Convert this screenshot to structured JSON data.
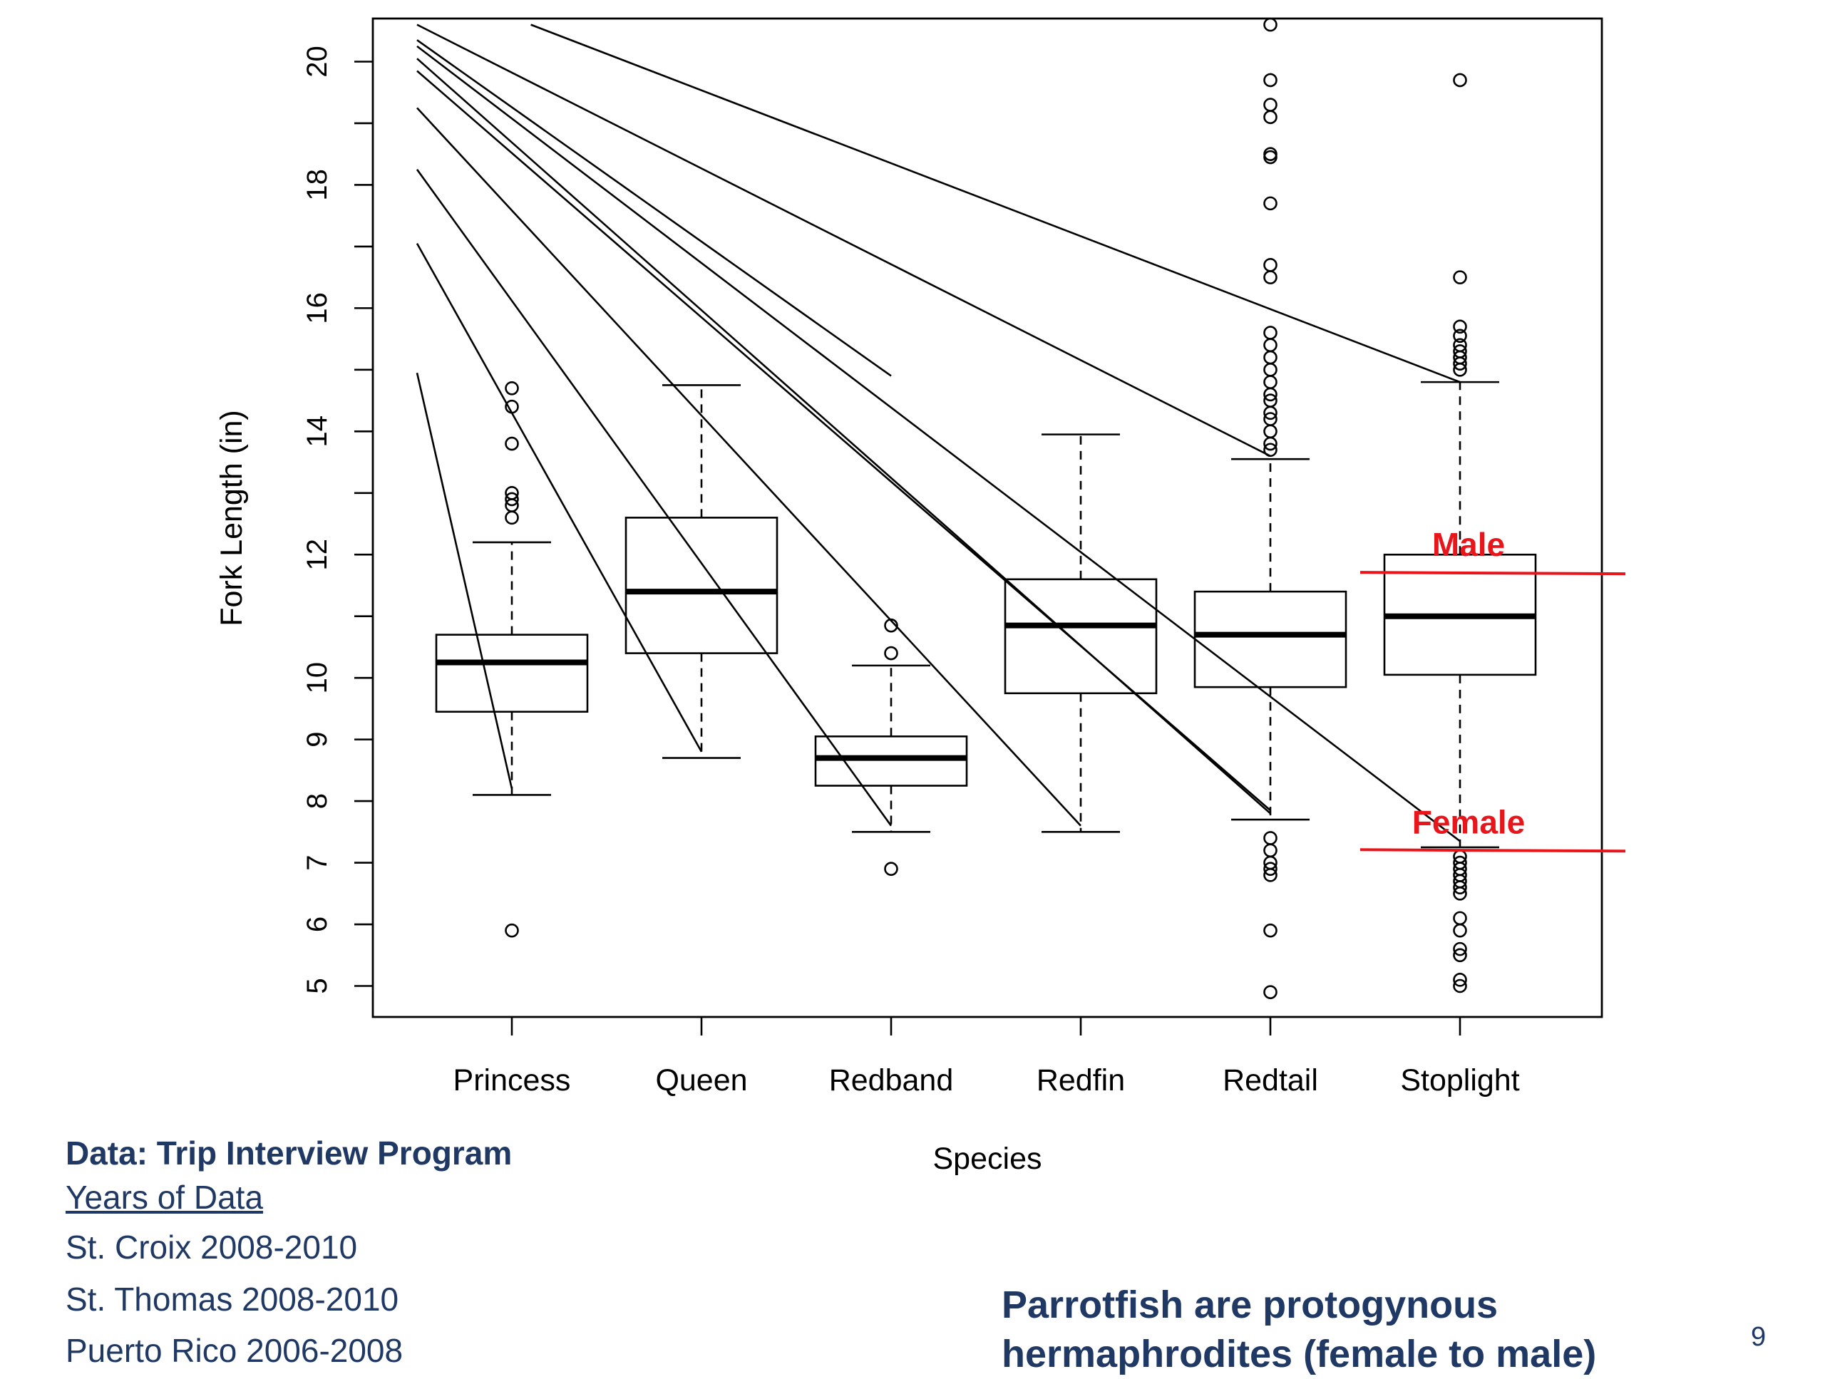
{
  "chart_data": {
    "type": "boxplot",
    "xlabel": "Species",
    "ylabel": "Fork Length (in)",
    "ylim": [
      4.4,
      20.6
    ],
    "yticks": [
      5,
      6,
      7,
      8,
      9,
      10,
      12,
      14,
      16,
      18,
      20
    ],
    "yminor": [
      11,
      13,
      15,
      17,
      19
    ],
    "categories": [
      "Princess",
      "Queen",
      "Redband",
      "Redfin",
      "Redtail",
      "Stoplight"
    ],
    "boxes": [
      {
        "name": "Princess",
        "whisker_low": 8.1,
        "q1": 9.45,
        "median": 10.25,
        "q3": 10.7,
        "whisker_high": 12.2,
        "outliers": [
          14.7,
          14.4,
          13.8,
          13.0,
          12.9,
          12.8,
          12.6,
          5.9
        ]
      },
      {
        "name": "Queen",
        "whisker_low": 8.7,
        "q1": 10.4,
        "median": 11.4,
        "q3": 12.6,
        "whisker_high": 14.75,
        "outliers": []
      },
      {
        "name": "Redband",
        "whisker_low": 7.5,
        "q1": 8.25,
        "median": 8.7,
        "q3": 9.05,
        "whisker_high": 10.2,
        "outliers": [
          10.85,
          10.4,
          6.9
        ]
      },
      {
        "name": "Redfin",
        "whisker_low": 7.5,
        "q1": 9.75,
        "median": 10.85,
        "q3": 11.6,
        "whisker_high": 13.95,
        "outliers": []
      },
      {
        "name": "Redtail",
        "whisker_low": 7.7,
        "q1": 9.85,
        "median": 10.7,
        "q3": 11.4,
        "whisker_high": 13.55,
        "outliers": [
          20.6,
          19.7,
          19.3,
          19.1,
          18.5,
          18.45,
          17.7,
          16.7,
          16.5,
          15.6,
          15.4,
          15.2,
          15.0,
          14.8,
          14.6,
          14.5,
          14.3,
          14.2,
          14.0,
          13.8,
          13.7,
          7.4,
          7.2,
          7.0,
          6.9,
          6.8,
          5.9,
          4.9
        ]
      },
      {
        "name": "Stoplight",
        "whisker_low": 7.25,
        "q1": 10.05,
        "median": 11.0,
        "q3": 12.0,
        "whisker_high": 14.8,
        "outliers": [
          19.7,
          16.5,
          15.7,
          15.55,
          15.4,
          15.3,
          15.2,
          15.1,
          15.0,
          7.1,
          7.0,
          6.9,
          6.8,
          6.7,
          6.6,
          6.5,
          6.1,
          5.9,
          5.6,
          5.5,
          5.1,
          5.0
        ]
      }
    ],
    "lines": [
      {
        "from": [
          0.5,
          14.95
        ],
        "to": [
          1.0,
          8.2
        ]
      },
      {
        "from": [
          0.5,
          17.05
        ],
        "to": [
          2.0,
          8.8
        ]
      },
      {
        "from": [
          0.5,
          18.25
        ],
        "to": [
          3.0,
          7.6
        ]
      },
      {
        "from": [
          0.5,
          19.25
        ],
        "to": [
          4.0,
          7.6
        ]
      },
      {
        "from": [
          0.5,
          19.85
        ],
        "to": [
          5.0,
          7.85
        ]
      },
      {
        "from": [
          0.5,
          20.05
        ],
        "to": [
          5.0,
          7.8
        ]
      },
      {
        "from": [
          0.5,
          20.25
        ],
        "to": [
          6.0,
          7.35
        ]
      },
      {
        "from": [
          0.5,
          20.35
        ],
        "to": [
          3.0,
          14.9
        ]
      },
      {
        "from": [
          0.5,
          20.6
        ],
        "to": [
          5.0,
          13.6
        ]
      },
      {
        "from": [
          1.1,
          20.6
        ],
        "to": [
          6.0,
          14.8
        ]
      }
    ],
    "annotations": [
      {
        "label": "Male",
        "y": 11.7,
        "color": "#e8151b"
      },
      {
        "label": "Female",
        "y": 7.2,
        "color": "#e8151b"
      }
    ]
  },
  "info": {
    "title": "Data: Trip Interview Program",
    "subtitle": "Years of Data",
    "lines": [
      "St. Croix 2008-2010",
      "St. Thomas 2008-2010",
      "Puerto Rico 2006-2008"
    ]
  },
  "note": {
    "line1": "Parrotfish are protogynous",
    "line2": "hermaphrodites (female to male)"
  },
  "page_number": "9"
}
